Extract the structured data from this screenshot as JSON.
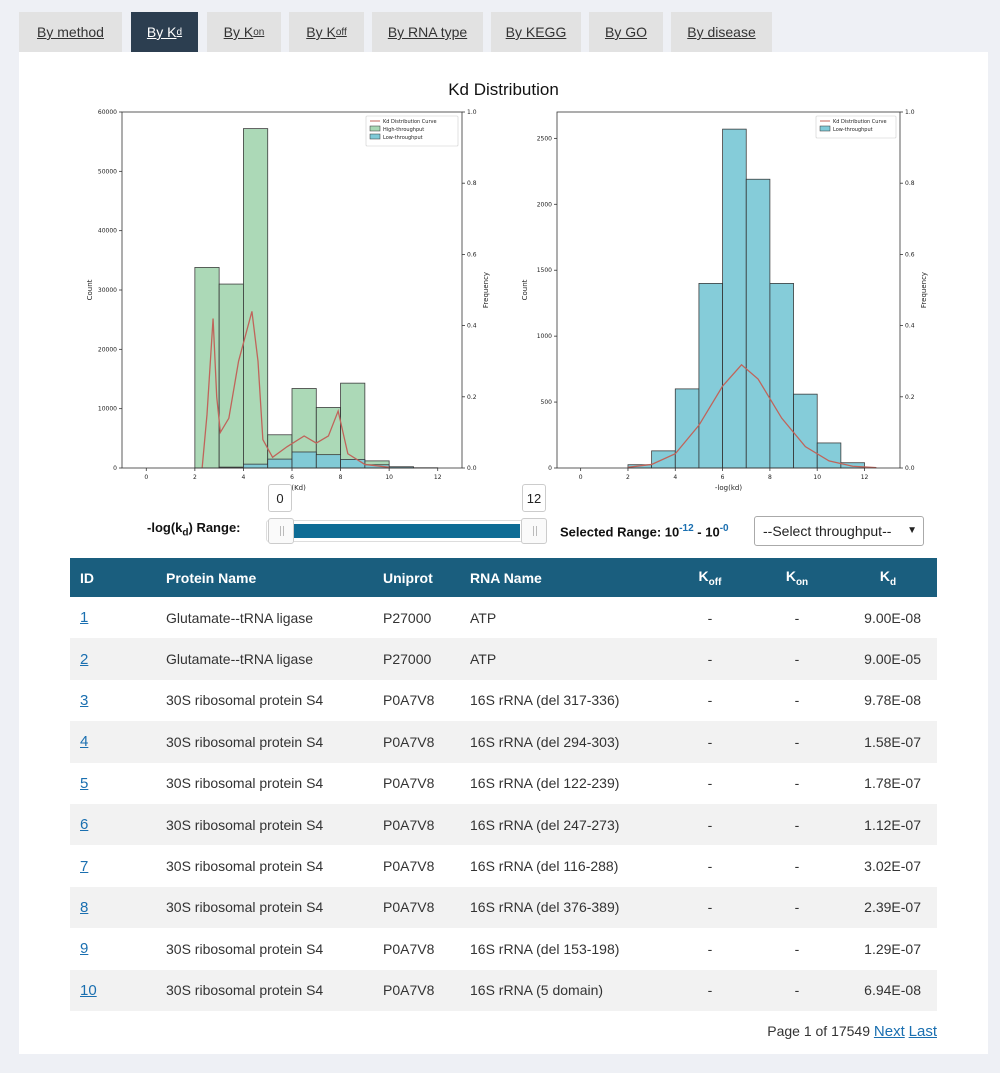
{
  "tabs": [
    {
      "label": "By method",
      "sub": ""
    },
    {
      "label": "By K",
      "sub": "d"
    },
    {
      "label": "By K",
      "sub": "on"
    },
    {
      "label": "By K",
      "sub": "off"
    },
    {
      "label": "By RNA type",
      "sub": ""
    },
    {
      "label": "By KEGG",
      "sub": ""
    },
    {
      "label": "By GO",
      "sub": ""
    },
    {
      "label": "By disease",
      "sub": ""
    }
  ],
  "figure_title": "Kd Distribution",
  "chart_data": [
    {
      "type": "bar",
      "xlabel": "-log(Kd)",
      "ylabel": "Count",
      "y2label": "Frequency",
      "xlim": [
        -1,
        13
      ],
      "ylim": [
        0,
        60000
      ],
      "y2lim": [
        0,
        1.0
      ],
      "xticks": [
        "0",
        "2",
        "4",
        "6",
        "8",
        "10",
        "12"
      ],
      "yticks": [
        "0",
        "10000",
        "20000",
        "30000",
        "40000",
        "50000",
        "60000"
      ],
      "y2ticks": [
        "0.0",
        "0.2",
        "0.4",
        "0.6",
        "0.8",
        "1.0"
      ],
      "legend": [
        "Kd Distribution Curve",
        "High-throughput",
        "Low-throughput"
      ],
      "legend_position": "top-right",
      "bin_width": 1,
      "series": [
        {
          "name": "High-throughput",
          "color": "#a8d8b4",
          "bins": [
            [
              2,
              33800
            ],
            [
              3,
              31000
            ],
            [
              4,
              57200
            ],
            [
              5,
              5600
            ],
            [
              6,
              13400
            ],
            [
              7,
              10200
            ],
            [
              8,
              14300
            ],
            [
              9,
              1200
            ],
            [
              10,
              200
            ]
          ]
        },
        {
          "name": "Low-throughput",
          "color": "#7fcad8",
          "bins": [
            [
              3,
              150
            ],
            [
              4,
              650
            ],
            [
              5,
              1500
            ],
            [
              6,
              2700
            ],
            [
              7,
              2250
            ],
            [
              8,
              1450
            ],
            [
              9,
              550
            ],
            [
              10,
              200
            ],
            [
              11,
              40
            ]
          ]
        }
      ],
      "curve": {
        "name": "Kd Distribution Curve",
        "color": "#c0645a",
        "points": [
          [
            2.3,
            0
          ],
          [
            2.5,
            0.15
          ],
          [
            2.75,
            0.42
          ],
          [
            2.9,
            0.2
          ],
          [
            3.05,
            0.1
          ],
          [
            3.4,
            0.14
          ],
          [
            3.8,
            0.3
          ],
          [
            4.35,
            0.44
          ],
          [
            4.6,
            0.3
          ],
          [
            4.8,
            0.08
          ],
          [
            5.2,
            0.03
          ],
          [
            5.8,
            0.06
          ],
          [
            6.5,
            0.09
          ],
          [
            7.0,
            0.07
          ],
          [
            7.5,
            0.09
          ],
          [
            7.9,
            0.16
          ],
          [
            8.3,
            0.04
          ],
          [
            9.0,
            0.01
          ],
          [
            10.0,
            0.002
          ]
        ]
      }
    },
    {
      "type": "bar",
      "xlabel": "-log(kd)",
      "ylabel": "Count",
      "y2label": "Frequency",
      "xlim": [
        -1,
        13.5
      ],
      "ylim": [
        0,
        2700
      ],
      "y2lim": [
        0,
        1.0
      ],
      "xticks": [
        "0",
        "2",
        "4",
        "6",
        "8",
        "10",
        "12"
      ],
      "yticks": [
        "0",
        "500",
        "1000",
        "1500",
        "2000",
        "2500"
      ],
      "y2ticks": [
        "0.0",
        "0.2",
        "0.4",
        "0.6",
        "0.8",
        "1.0"
      ],
      "legend": [
        "Kd Distribution Curve",
        "Low-throughput"
      ],
      "legend_position": "top-right",
      "bin_width": 1,
      "series": [
        {
          "name": "Low-throughput",
          "color": "#7fcad8",
          "bins": [
            [
              2,
              25
            ],
            [
              3,
              130
            ],
            [
              4,
              600
            ],
            [
              5,
              1400
            ],
            [
              6,
              2570
            ],
            [
              7,
              2190
            ],
            [
              8,
              1400
            ],
            [
              9,
              560
            ],
            [
              10,
              190
            ],
            [
              11,
              40
            ]
          ]
        }
      ],
      "curve": {
        "name": "Kd Distribution Curve",
        "color": "#c0645a",
        "points": [
          [
            2.0,
            0.002
          ],
          [
            3.0,
            0.01
          ],
          [
            4.0,
            0.04
          ],
          [
            5.0,
            0.12
          ],
          [
            6.0,
            0.23
          ],
          [
            6.8,
            0.29
          ],
          [
            7.5,
            0.25
          ],
          [
            8.5,
            0.14
          ],
          [
            9.5,
            0.06
          ],
          [
            10.5,
            0.02
          ],
          [
            11.5,
            0.005
          ],
          [
            12.5,
            0.001
          ]
        ]
      }
    }
  ],
  "slider": {
    "label": "-log(k",
    "label_sub": "d",
    "label_end": ") Range:",
    "min_value": "0",
    "max_value": "12",
    "selected_prefix": "Selected Range: 10",
    "selected_low_exp": "-12",
    "selected_sep": " - 10",
    "selected_high_exp": "-0"
  },
  "throughput_select": {
    "value": "--Select throughput--"
  },
  "table": {
    "headers": [
      {
        "label": "ID",
        "sub": ""
      },
      {
        "label": "Protein Name",
        "sub": ""
      },
      {
        "label": "Uniprot",
        "sub": ""
      },
      {
        "label": "RNA Name",
        "sub": ""
      },
      {
        "label": "K",
        "sub": "off"
      },
      {
        "label": "K",
        "sub": "on"
      },
      {
        "label": "K",
        "sub": "d"
      }
    ],
    "rows": [
      {
        "id": "1",
        "protein": "Glutamate--tRNA ligase",
        "uniprot": "P27000",
        "rna": "ATP",
        "koff": "-",
        "kon": "-",
        "kd": "9.00E-08"
      },
      {
        "id": "2",
        "protein": "Glutamate--tRNA ligase",
        "uniprot": "P27000",
        "rna": "ATP",
        "koff": "-",
        "kon": "-",
        "kd": "9.00E-05"
      },
      {
        "id": "3",
        "protein": "30S ribosomal protein S4",
        "uniprot": "P0A7V8",
        "rna": "16S rRNA (del 317-336)",
        "koff": "-",
        "kon": "-",
        "kd": "9.78E-08"
      },
      {
        "id": "4",
        "protein": "30S ribosomal protein S4",
        "uniprot": "P0A7V8",
        "rna": "16S rRNA (del 294-303)",
        "koff": "-",
        "kon": "-",
        "kd": "1.58E-07"
      },
      {
        "id": "5",
        "protein": "30S ribosomal protein S4",
        "uniprot": "P0A7V8",
        "rna": "16S rRNA (del 122-239)",
        "koff": "-",
        "kon": "-",
        "kd": "1.78E-07"
      },
      {
        "id": "6",
        "protein": "30S ribosomal protein S4",
        "uniprot": "P0A7V8",
        "rna": "16S rRNA (del 247-273)",
        "koff": "-",
        "kon": "-",
        "kd": "1.12E-07"
      },
      {
        "id": "7",
        "protein": "30S ribosomal protein S4",
        "uniprot": "P0A7V8",
        "rna": "16S rRNA (del 116-288)",
        "koff": "-",
        "kon": "-",
        "kd": "3.02E-07"
      },
      {
        "id": "8",
        "protein": "30S ribosomal protein S4",
        "uniprot": "P0A7V8",
        "rna": "16S rRNA (del 376-389)",
        "koff": "-",
        "kon": "-",
        "kd": "2.39E-07"
      },
      {
        "id": "9",
        "protein": "30S ribosomal protein S4",
        "uniprot": "P0A7V8",
        "rna": "16S rRNA (del 153-198)",
        "koff": "-",
        "kon": "-",
        "kd": "1.29E-07"
      },
      {
        "id": "10",
        "protein": "30S ribosomal protein S4",
        "uniprot": "P0A7V8",
        "rna": "16S rRNA (5 domain)",
        "koff": "-",
        "kon": "-",
        "kd": "6.94E-08"
      }
    ]
  },
  "pager": {
    "text": "Page 1 of 17549",
    "next": "Next",
    "last": "Last"
  }
}
